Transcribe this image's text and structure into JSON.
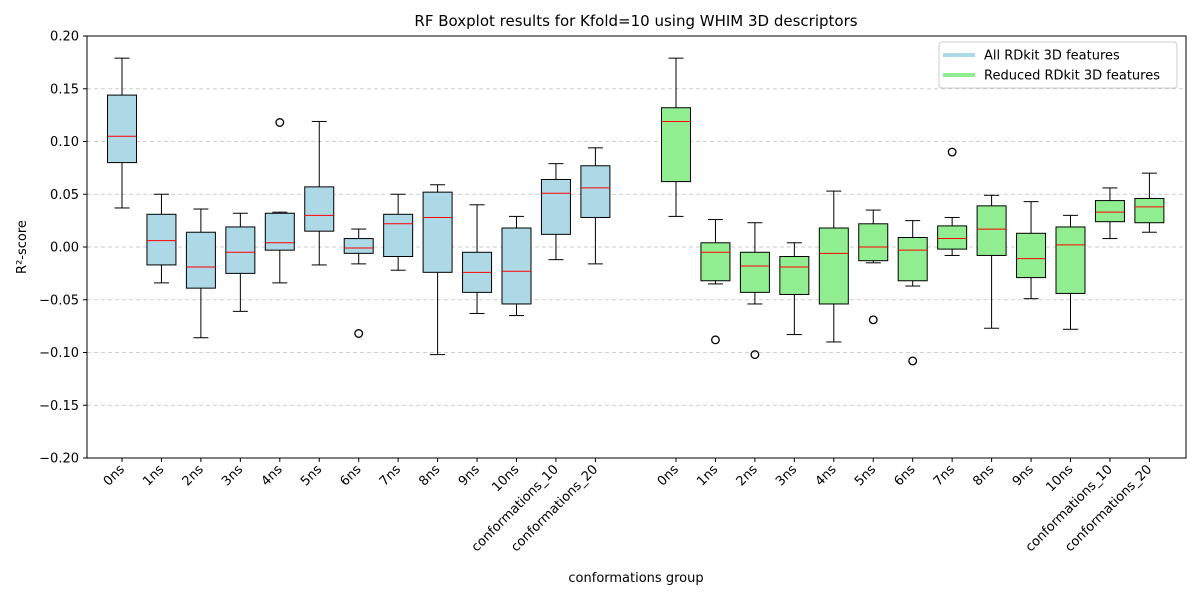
{
  "chart_data": {
    "type": "box",
    "title": "RF Boxplot results for Kfold=10 using WHIM 3D descriptors",
    "xlabel": "conformations group",
    "ylabel": "R²-score",
    "ylim": [
      -0.2,
      0.2
    ],
    "yticks": [
      -0.2,
      -0.15,
      -0.1,
      -0.05,
      0.0,
      0.05,
      0.1,
      0.15,
      0.2
    ],
    "ytick_labels": [
      "−0.20",
      "−0.15",
      "−0.10",
      "−0.05",
      "0.00",
      "0.05",
      "0.10",
      "0.15",
      "0.20"
    ],
    "grid": "y-dashed",
    "legend_position": "top-right",
    "categories": [
      "0ns",
      "1ns",
      "2ns",
      "3ns",
      "4ns",
      "5ns",
      "6ns",
      "7ns",
      "8ns",
      "9ns",
      "10ns",
      "conformations_10",
      "conformations_20"
    ],
    "series": [
      {
        "name": "All RDkit 3D features",
        "color": "#add8e6",
        "boxes": [
          {
            "whislo": 0.037,
            "q1": 0.08,
            "med": 0.105,
            "q3": 0.144,
            "whishi": 0.179,
            "fliers": []
          },
          {
            "whislo": -0.034,
            "q1": -0.017,
            "med": 0.006,
            "q3": 0.031,
            "whishi": 0.05,
            "fliers": []
          },
          {
            "whislo": -0.086,
            "q1": -0.039,
            "med": -0.019,
            "q3": 0.014,
            "whishi": 0.036,
            "fliers": []
          },
          {
            "whislo": -0.061,
            "q1": -0.025,
            "med": -0.005,
            "q3": 0.019,
            "whishi": 0.032,
            "fliers": []
          },
          {
            "whislo": -0.034,
            "q1": -0.003,
            "med": 0.004,
            "q3": 0.032,
            "whishi": 0.033,
            "fliers": [
              0.118
            ]
          },
          {
            "whislo": -0.017,
            "q1": 0.015,
            "med": 0.03,
            "q3": 0.057,
            "whishi": 0.119,
            "fliers": []
          },
          {
            "whislo": -0.016,
            "q1": -0.006,
            "med": -0.001,
            "q3": 0.008,
            "whishi": 0.017,
            "fliers": [
              -0.082
            ]
          },
          {
            "whislo": -0.022,
            "q1": -0.009,
            "med": 0.022,
            "q3": 0.031,
            "whishi": 0.05,
            "fliers": []
          },
          {
            "whislo": -0.102,
            "q1": -0.024,
            "med": 0.028,
            "q3": 0.052,
            "whishi": 0.059,
            "fliers": []
          },
          {
            "whislo": -0.063,
            "q1": -0.043,
            "med": -0.024,
            "q3": -0.005,
            "whishi": 0.04,
            "fliers": []
          },
          {
            "whislo": -0.065,
            "q1": -0.054,
            "med": -0.023,
            "q3": 0.018,
            "whishi": 0.029,
            "fliers": []
          },
          {
            "whislo": -0.012,
            "q1": 0.012,
            "med": 0.051,
            "q3": 0.064,
            "whishi": 0.079,
            "fliers": []
          },
          {
            "whislo": -0.016,
            "q1": 0.028,
            "med": 0.056,
            "q3": 0.077,
            "whishi": 0.094,
            "fliers": []
          }
        ]
      },
      {
        "name": "Reduced RDkit 3D features",
        "color": "#90ee90",
        "boxes": [
          {
            "whislo": 0.029,
            "q1": 0.062,
            "med": 0.119,
            "q3": 0.132,
            "whishi": 0.179,
            "fliers": []
          },
          {
            "whislo": -0.035,
            "q1": -0.032,
            "med": -0.005,
            "q3": 0.004,
            "whishi": 0.026,
            "fliers": [
              -0.088
            ]
          },
          {
            "whislo": -0.054,
            "q1": -0.043,
            "med": -0.018,
            "q3": -0.005,
            "whishi": 0.023,
            "fliers": [
              -0.102
            ]
          },
          {
            "whislo": -0.083,
            "q1": -0.045,
            "med": -0.019,
            "q3": -0.009,
            "whishi": 0.004,
            "fliers": []
          },
          {
            "whislo": -0.09,
            "q1": -0.054,
            "med": -0.006,
            "q3": 0.018,
            "whishi": 0.053,
            "fliers": []
          },
          {
            "whislo": -0.015,
            "q1": -0.013,
            "med": 0.0,
            "q3": 0.022,
            "whishi": 0.035,
            "fliers": [
              -0.069
            ]
          },
          {
            "whislo": -0.037,
            "q1": -0.032,
            "med": -0.003,
            "q3": 0.009,
            "whishi": 0.025,
            "fliers": [
              -0.108
            ]
          },
          {
            "whislo": -0.008,
            "q1": -0.002,
            "med": 0.008,
            "q3": 0.02,
            "whishi": 0.028,
            "fliers": [
              0.09
            ]
          },
          {
            "whislo": -0.077,
            "q1": -0.008,
            "med": 0.017,
            "q3": 0.039,
            "whishi": 0.049,
            "fliers": []
          },
          {
            "whislo": -0.049,
            "q1": -0.029,
            "med": -0.011,
            "q3": 0.013,
            "whishi": 0.043,
            "fliers": []
          },
          {
            "whislo": -0.078,
            "q1": -0.044,
            "med": 0.002,
            "q3": 0.019,
            "whishi": 0.03,
            "fliers": []
          },
          {
            "whislo": 0.008,
            "q1": 0.024,
            "med": 0.033,
            "q3": 0.044,
            "whishi": 0.056,
            "fliers": []
          },
          {
            "whislo": 0.014,
            "q1": 0.023,
            "med": 0.038,
            "q3": 0.046,
            "whishi": 0.07,
            "fliers": []
          }
        ]
      }
    ],
    "median_color": "#ff0000"
  }
}
